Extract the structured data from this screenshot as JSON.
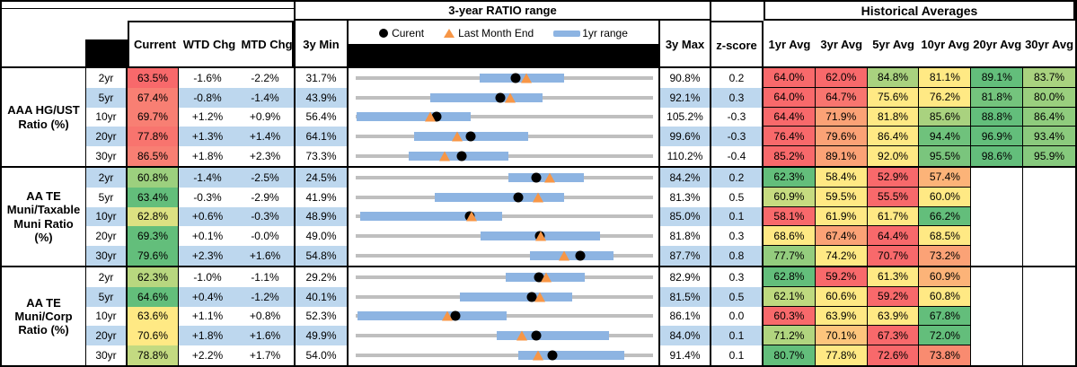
{
  "header": {
    "range_title": "3-year RATIO range",
    "hist_title": "Historical Averages",
    "columns": {
      "current": "Current",
      "wtd": "WTD Chg",
      "mtd": "MTD Chg",
      "min": "3y Min",
      "max": "3y Max",
      "z": "z-score"
    },
    "hist_cols": [
      "1yr Avg",
      "3yr Avg",
      "5yr Avg",
      "10yr Avg",
      "20yr Avg",
      "30yr Avg"
    ],
    "legend": {
      "current_label": "Curent",
      "last_month_label": "Last Month End",
      "range_label": "1yr range"
    }
  },
  "colors": {
    "row_band": "#BDD7EE",
    "track_gray": "#BFBFBF",
    "range_bar_blue": "#8DB4E2",
    "current_dot": "#000000",
    "last_month_triangle": "#F79646",
    "heat_red": "#F8696B",
    "heat_orange": "#FBA276",
    "heat_yellow": "#FFE984",
    "heat_green": "#63BE7B"
  },
  "groups": [
    {
      "label": "AAA HG/UST Ratio (%)",
      "rows": [
        {
          "tenor": "2yr",
          "current": {
            "text": "63.5%",
            "bg": "#F8696B"
          },
          "wtd": "-1.6%",
          "mtd": "-2.2%",
          "min": "31.7%",
          "max": "90.8%",
          "z": "0.2",
          "range": {
            "min": 31.7,
            "max": 90.8,
            "bar_lo": 56.4,
            "bar_hi": 73.2,
            "current": 63.5,
            "last_month": 65.6
          },
          "hist": [
            {
              "text": "64.0%",
              "bg": "#F8696B"
            },
            {
              "text": "62.0%",
              "bg": "#F8696B"
            },
            {
              "text": "84.8%",
              "bg": "#A9D27F"
            },
            {
              "text": "81.1%",
              "bg": "#FFE984"
            },
            {
              "text": "89.1%",
              "bg": "#63BE7B"
            },
            {
              "text": "83.7%",
              "bg": "#A9D27F"
            }
          ]
        },
        {
          "tenor": "5yr",
          "current": {
            "text": "67.4%",
            "bg": "#F87F73"
          },
          "wtd": "-0.8%",
          "mtd": "-1.4%",
          "min": "43.9%",
          "max": "92.1%",
          "z": "0.3",
          "range": {
            "min": 43.9,
            "max": 92.1,
            "bar_lo": 56.0,
            "bar_hi": 74.2,
            "current": 67.4,
            "last_month": 68.9
          },
          "hist": [
            {
              "text": "64.0%",
              "bg": "#F8696B"
            },
            {
              "text": "64.7%",
              "bg": "#F8756F"
            },
            {
              "text": "75.6%",
              "bg": "#FFE984"
            },
            {
              "text": "76.2%",
              "bg": "#FFE984"
            },
            {
              "text": "81.8%",
              "bg": "#74C47D"
            },
            {
              "text": "80.0%",
              "bg": "#9ACF7E"
            }
          ]
        },
        {
          "tenor": "10yr",
          "current": {
            "text": "69.7%",
            "bg": "#F87F73"
          },
          "wtd": "+1.2%",
          "mtd": "+0.9%",
          "min": "56.4%",
          "max": "105.2%",
          "z": "-0.3",
          "range": {
            "min": 56.4,
            "max": 105.2,
            "bar_lo": 56.5,
            "bar_hi": 75.3,
            "current": 69.7,
            "last_month": 68.7
          },
          "hist": [
            {
              "text": "64.4%",
              "bg": "#F8696B"
            },
            {
              "text": "71.9%",
              "bg": "#FBA276"
            },
            {
              "text": "81.8%",
              "bg": "#FFE984"
            },
            {
              "text": "85.6%",
              "bg": "#A9D27F"
            },
            {
              "text": "88.8%",
              "bg": "#63BE7B"
            },
            {
              "text": "86.4%",
              "bg": "#8FCC7D"
            }
          ]
        },
        {
          "tenor": "20yr",
          "current": {
            "text": "77.8%",
            "bg": "#F8746E"
          },
          "wtd": "+1.3%",
          "mtd": "+1.4%",
          "min": "64.1%",
          "max": "99.6%",
          "z": "-0.3",
          "range": {
            "min": 64.1,
            "max": 99.6,
            "bar_lo": 71.1,
            "bar_hi": 84.7,
            "current": 77.8,
            "last_month": 76.2
          },
          "hist": [
            {
              "text": "76.4%",
              "bg": "#F8696B"
            },
            {
              "text": "79.6%",
              "bg": "#FBA276"
            },
            {
              "text": "86.4%",
              "bg": "#FFE984"
            },
            {
              "text": "94.4%",
              "bg": "#6FC27C"
            },
            {
              "text": "96.9%",
              "bg": "#63BE7B"
            },
            {
              "text": "93.4%",
              "bg": "#8BCA7D"
            }
          ]
        },
        {
          "tenor": "30yr",
          "current": {
            "text": "86.5%",
            "bg": "#F87F73"
          },
          "wtd": "+1.8%",
          "mtd": "+2.3%",
          "min": "73.3%",
          "max": "110.2%",
          "z": "-0.4",
          "range": {
            "min": 73.3,
            "max": 110.2,
            "bar_lo": 79.9,
            "bar_hi": 92.2,
            "current": 86.5,
            "last_month": 84.3
          },
          "hist": [
            {
              "text": "85.2%",
              "bg": "#F8696B"
            },
            {
              "text": "89.1%",
              "bg": "#FBA276"
            },
            {
              "text": "92.0%",
              "bg": "#FFE984"
            },
            {
              "text": "95.5%",
              "bg": "#7AC57D"
            },
            {
              "text": "98.6%",
              "bg": "#63BE7B"
            },
            {
              "text": "95.9%",
              "bg": "#86C97D"
            }
          ]
        }
      ]
    },
    {
      "label": "AA TE Muni/Taxable Muni Ratio (%)",
      "rows": [
        {
          "tenor": "2yr",
          "current": {
            "text": "60.8%",
            "bg": "#9CD07E"
          },
          "wtd": "-1.4%",
          "mtd": "-2.5%",
          "min": "24.5%",
          "max": "84.2%",
          "z": "0.2",
          "range": {
            "min": 24.5,
            "max": 84.2,
            "bar_lo": 55.1,
            "bar_hi": 70.4,
            "current": 60.8,
            "last_month": 63.4
          },
          "hist": [
            {
              "text": "62.3%",
              "bg": "#63BE7B"
            },
            {
              "text": "58.4%",
              "bg": "#FFE984"
            },
            {
              "text": "52.9%",
              "bg": "#F8696B"
            },
            {
              "text": "57.4%",
              "bg": "#FCB378"
            },
            {
              "text": "",
              "bg": ""
            },
            {
              "text": "",
              "bg": ""
            }
          ]
        },
        {
          "tenor": "5yr",
          "current": {
            "text": "63.4%",
            "bg": "#63BE7B"
          },
          "wtd": "-0.3%",
          "mtd": "-2.9%",
          "min": "41.9%",
          "max": "81.3%",
          "z": "0.5",
          "range": {
            "min": 41.9,
            "max": 81.3,
            "bar_lo": 52.4,
            "bar_hi": 69.5,
            "current": 63.4,
            "last_month": 66.1
          },
          "hist": [
            {
              "text": "60.9%",
              "bg": "#C6DB80"
            },
            {
              "text": "59.5%",
              "bg": "#FFE984"
            },
            {
              "text": "55.5%",
              "bg": "#F8696B"
            },
            {
              "text": "60.0%",
              "bg": "#FFE984"
            },
            {
              "text": "",
              "bg": ""
            },
            {
              "text": "",
              "bg": ""
            }
          ]
        },
        {
          "tenor": "10yr",
          "current": {
            "text": "62.8%",
            "bg": "#DCE182"
          },
          "wtd": "+0.6%",
          "mtd": "-0.3%",
          "min": "48.9%",
          "max": "85.0%",
          "z": "0.1",
          "range": {
            "min": 48.9,
            "max": 85.0,
            "bar_lo": 49.4,
            "bar_hi": 66.7,
            "current": 62.8,
            "last_month": 63.0
          },
          "hist": [
            {
              "text": "58.1%",
              "bg": "#F8696B"
            },
            {
              "text": "61.9%",
              "bg": "#FFE984"
            },
            {
              "text": "61.7%",
              "bg": "#FFE984"
            },
            {
              "text": "66.2%",
              "bg": "#63BE7B"
            },
            {
              "text": "",
              "bg": ""
            },
            {
              "text": "",
              "bg": ""
            }
          ]
        },
        {
          "tenor": "20yr",
          "current": {
            "text": "69.3%",
            "bg": "#63BE7B"
          },
          "wtd": "+0.1%",
          "mtd": "-0.0%",
          "min": "49.0%",
          "max": "81.8%",
          "z": "0.3",
          "range": {
            "min": 49.0,
            "max": 81.8,
            "bar_lo": 62.8,
            "bar_hi": 76.0,
            "current": 69.3,
            "last_month": 69.4
          },
          "hist": [
            {
              "text": "68.6%",
              "bg": "#FFE984"
            },
            {
              "text": "67.4%",
              "bg": "#FBA276"
            },
            {
              "text": "64.4%",
              "bg": "#F8696B"
            },
            {
              "text": "68.5%",
              "bg": "#FFE984"
            },
            {
              "text": "",
              "bg": ""
            },
            {
              "text": "",
              "bg": ""
            }
          ]
        },
        {
          "tenor": "30yr",
          "current": {
            "text": "79.6%",
            "bg": "#63BE7B"
          },
          "wtd": "+2.3%",
          "mtd": "+1.6%",
          "min": "54.8%",
          "max": "87.7%",
          "z": "0.8",
          "range": {
            "min": 54.8,
            "max": 87.7,
            "bar_lo": 74.1,
            "bar_hi": 83.3,
            "current": 79.6,
            "last_month": 77.9
          },
          "hist": [
            {
              "text": "77.7%",
              "bg": "#94CD7E"
            },
            {
              "text": "74.2%",
              "bg": "#FFE984"
            },
            {
              "text": "70.7%",
              "bg": "#F8696B"
            },
            {
              "text": "73.2%",
              "bg": "#FBA276"
            },
            {
              "text": "",
              "bg": ""
            },
            {
              "text": "",
              "bg": ""
            }
          ]
        }
      ]
    },
    {
      "label": "AA TE Muni/Corp Ratio (%)",
      "rows": [
        {
          "tenor": "2yr",
          "current": {
            "text": "62.3%",
            "bg": "#B8D77F"
          },
          "wtd": "-1.0%",
          "mtd": "-1.1%",
          "min": "29.2%",
          "max": "82.9%",
          "z": "0.3",
          "range": {
            "min": 29.2,
            "max": 82.9,
            "bar_lo": 56.3,
            "bar_hi": 70.5,
            "current": 62.3,
            "last_month": 63.6
          },
          "hist": [
            {
              "text": "62.8%",
              "bg": "#63BE7B"
            },
            {
              "text": "59.2%",
              "bg": "#F8696B"
            },
            {
              "text": "61.3%",
              "bg": "#FFE984"
            },
            {
              "text": "60.9%",
              "bg": "#FCB378"
            },
            {
              "text": "",
              "bg": ""
            },
            {
              "text": "",
              "bg": ""
            }
          ]
        },
        {
          "tenor": "5yr",
          "current": {
            "text": "64.6%",
            "bg": "#63BE7B"
          },
          "wtd": "+0.4%",
          "mtd": "-1.2%",
          "min": "40.1%",
          "max": "81.5%",
          "z": "0.5",
          "range": {
            "min": 40.1,
            "max": 81.5,
            "bar_lo": 54.6,
            "bar_hi": 70.3,
            "current": 64.6,
            "last_month": 65.7
          },
          "hist": [
            {
              "text": "62.1%",
              "bg": "#BED97F"
            },
            {
              "text": "60.6%",
              "bg": "#FFE984"
            },
            {
              "text": "59.2%",
              "bg": "#F8696B"
            },
            {
              "text": "60.8%",
              "bg": "#FFE984"
            },
            {
              "text": "",
              "bg": ""
            },
            {
              "text": "",
              "bg": ""
            }
          ]
        },
        {
          "tenor": "10yr",
          "current": {
            "text": "63.6%",
            "bg": "#FFE984"
          },
          "wtd": "+1.1%",
          "mtd": "+0.8%",
          "min": "52.3%",
          "max": "86.1%",
          "z": "0.0",
          "range": {
            "min": 52.3,
            "max": 86.1,
            "bar_lo": 52.5,
            "bar_hi": 69.5,
            "current": 63.6,
            "last_month": 62.7
          },
          "hist": [
            {
              "text": "60.3%",
              "bg": "#F8696B"
            },
            {
              "text": "63.9%",
              "bg": "#FFE984"
            },
            {
              "text": "63.9%",
              "bg": "#FFE984"
            },
            {
              "text": "67.8%",
              "bg": "#63BE7B"
            },
            {
              "text": "",
              "bg": ""
            },
            {
              "text": "",
              "bg": ""
            }
          ]
        },
        {
          "tenor": "20yr",
          "current": {
            "text": "70.6%",
            "bg": "#FFE984"
          },
          "wtd": "+1.8%",
          "mtd": "+1.6%",
          "min": "49.9%",
          "max": "84.0%",
          "z": "0.1",
          "range": {
            "min": 49.9,
            "max": 84.0,
            "bar_lo": 66.1,
            "bar_hi": 79.0,
            "current": 70.6,
            "last_month": 69.0
          },
          "hist": [
            {
              "text": "71.2%",
              "bg": "#B1D57F"
            },
            {
              "text": "70.1%",
              "bg": "#FDC57C"
            },
            {
              "text": "67.3%",
              "bg": "#F8696B"
            },
            {
              "text": "72.0%",
              "bg": "#63BE7B"
            },
            {
              "text": "",
              "bg": ""
            },
            {
              "text": "",
              "bg": ""
            }
          ]
        },
        {
          "tenor": "30yr",
          "current": {
            "text": "78.8%",
            "bg": "#C3DA81"
          },
          "wtd": "+2.2%",
          "mtd": "+1.7%",
          "min": "54.0%",
          "max": "91.4%",
          "z": "0.1",
          "range": {
            "min": 54.0,
            "max": 91.4,
            "bar_lo": 74.5,
            "bar_hi": 87.8,
            "current": 78.8,
            "last_month": 76.9
          },
          "hist": [
            {
              "text": "80.7%",
              "bg": "#63BE7B"
            },
            {
              "text": "77.8%",
              "bg": "#FFE984"
            },
            {
              "text": "72.6%",
              "bg": "#F8696B"
            },
            {
              "text": "73.8%",
              "bg": "#F98B70"
            },
            {
              "text": "",
              "bg": ""
            },
            {
              "text": "",
              "bg": ""
            }
          ]
        }
      ]
    }
  ]
}
